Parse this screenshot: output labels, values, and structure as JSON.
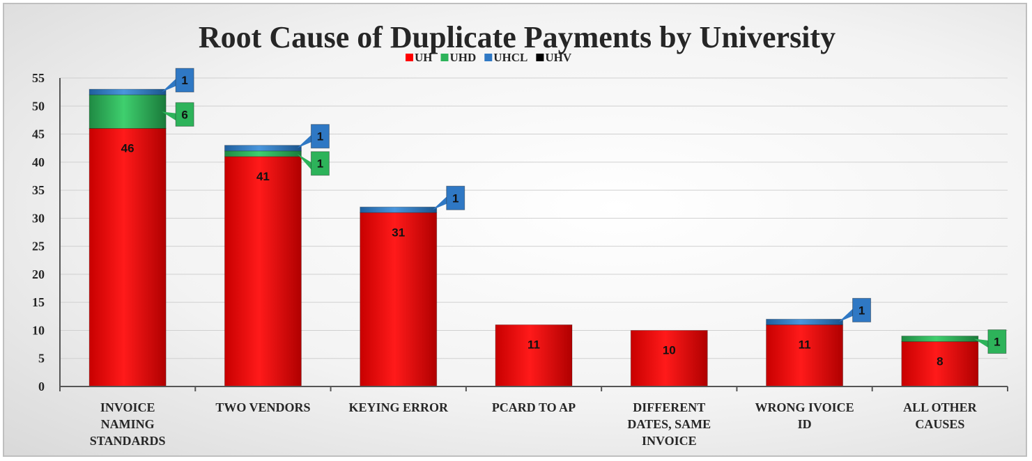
{
  "chart_data": {
    "type": "bar",
    "stacked": true,
    "title": "Root Cause of Duplicate Payments by University",
    "categories": [
      [
        "INVOICE",
        "NAMING",
        "STANDARDS"
      ],
      [
        "TWO VENDORS"
      ],
      [
        "KEYING ERROR"
      ],
      [
        "PCARD TO AP"
      ],
      [
        "DIFFERENT",
        "DATES, SAME",
        "INVOICE"
      ],
      [
        "WRONG IVOICE",
        "ID"
      ],
      [
        "ALL OTHER",
        "CAUSES"
      ]
    ],
    "series": [
      {
        "name": "UH",
        "color": "#ff0000",
        "values": [
          46,
          41,
          31,
          11,
          10,
          11,
          8
        ]
      },
      {
        "name": "UHD",
        "color": "#2db35a",
        "values": [
          6,
          1,
          0,
          0,
          0,
          0,
          1
        ]
      },
      {
        "name": "UHCL",
        "color": "#2f78c4",
        "values": [
          1,
          1,
          1,
          0,
          0,
          1,
          0
        ]
      },
      {
        "name": "UHV",
        "color": "#000000",
        "values": [
          0,
          0,
          0,
          0,
          0,
          0,
          0
        ]
      }
    ],
    "ylim": [
      0,
      55
    ],
    "yticks": [
      0,
      5,
      10,
      15,
      20,
      25,
      30,
      35,
      40,
      45,
      50,
      55
    ],
    "grid": true,
    "legend_position": "top",
    "xlabel": "",
    "ylabel": ""
  }
}
